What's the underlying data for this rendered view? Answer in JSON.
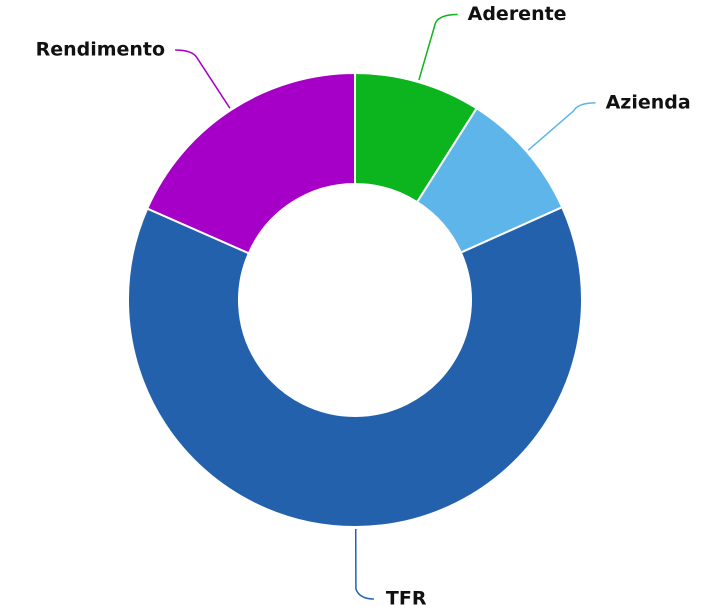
{
  "chart_data": {
    "type": "pie",
    "categories": [
      "Aderente",
      "Azienda",
      "TFR",
      "Rendimento"
    ],
    "values": [
      9,
      9.3,
      63.3,
      18.4
    ],
    "colors": [
      "#0cb41d",
      "#5db5ea",
      "#2361ad",
      "#a600c8"
    ]
  }
}
